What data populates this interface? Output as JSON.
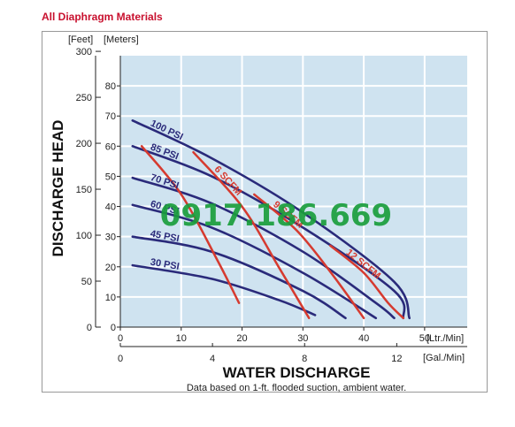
{
  "page": {
    "title": "All Diaphragm Materials",
    "watermark": "0917.186.669"
  },
  "chart_data": {
    "type": "line",
    "title": "All Diaphragm Materials",
    "xlabel": "WATER DISCHARGE",
    "ylabel": "DISCHARGE HEAD",
    "note": "Data based on 1-ft. flooded suction, ambient water.",
    "x_unit_primary": "[Ltr./Min]",
    "x_unit_secondary": "[Gal./Min]",
    "y_unit_left": "[Feet]",
    "y_unit_right": "[Meters]",
    "xlim": [
      0,
      57
    ],
    "ylim_meters": [
      0,
      90
    ],
    "ylim_feet": [
      0,
      300
    ],
    "x_ticks_lpm": [
      "0",
      "10",
      "20",
      "30",
      "40",
      "50"
    ],
    "x_ticks_gpm": [
      "0",
      "4",
      "8",
      "12"
    ],
    "y_ticks_m": [
      "0",
      "10",
      "20",
      "30",
      "40",
      "50",
      "60",
      "70",
      "80"
    ],
    "y_ticks_ft": [
      "0",
      "50",
      "100",
      "150",
      "200",
      "250",
      "300"
    ],
    "grid": true,
    "series": [
      {
        "name": "100 PSI",
        "group": "pressure",
        "color": "#2a2a7a",
        "points": [
          [
            2,
            68.5
          ],
          [
            15,
            56
          ],
          [
            30,
            38
          ],
          [
            45,
            15
          ],
          [
            47.5,
            3
          ]
        ]
      },
      {
        "name": "85 PSI",
        "group": "pressure",
        "color": "#2a2a7a",
        "points": [
          [
            2,
            60
          ],
          [
            15,
            50
          ],
          [
            30,
            33
          ],
          [
            45,
            12
          ],
          [
            46.5,
            3
          ]
        ]
      },
      {
        "name": "70 PSI",
        "group": "pressure",
        "color": "#2a2a7a",
        "points": [
          [
            2,
            49.5
          ],
          [
            15,
            41
          ],
          [
            30,
            25
          ],
          [
            42,
            8
          ],
          [
            45,
            3
          ]
        ]
      },
      {
        "name": "60 PSI",
        "group": "pressure",
        "color": "#2a2a7a",
        "points": [
          [
            2,
            40.5
          ],
          [
            15,
            33
          ],
          [
            30,
            18
          ],
          [
            42,
            3
          ]
        ]
      },
      {
        "name": "45 PSI",
        "group": "pressure",
        "color": "#2a2a7a",
        "points": [
          [
            2,
            30
          ],
          [
            15,
            25
          ],
          [
            30,
            12
          ],
          [
            37,
            3
          ]
        ]
      },
      {
        "name": "30 PSI",
        "group": "pressure",
        "color": "#2a2a7a",
        "points": [
          [
            2,
            20.5
          ],
          [
            15,
            16
          ],
          [
            26,
            9
          ],
          [
            32,
            4
          ]
        ]
      },
      {
        "name": "",
        "group": "air",
        "color": "#d63a2f",
        "points": [
          [
            3.5,
            60
          ],
          [
            10,
            44
          ],
          [
            16,
            22
          ],
          [
            19.5,
            8
          ]
        ]
      },
      {
        "name": "6 SCFM",
        "group": "air",
        "color": "#d63a2f",
        "points": [
          [
            12,
            58
          ],
          [
            20,
            40
          ],
          [
            26,
            20
          ],
          [
            31,
            3
          ]
        ]
      },
      {
        "name": "9 SCFM",
        "group": "air",
        "color": "#d63a2f",
        "points": [
          [
            22,
            44
          ],
          [
            29,
            32
          ],
          [
            35,
            17
          ],
          [
            40,
            3
          ]
        ]
      },
      {
        "name": "12 SCFM",
        "group": "air",
        "color": "#d63a2f",
        "points": [
          [
            34.5,
            27
          ],
          [
            40,
            18
          ],
          [
            44,
            8
          ],
          [
            46.5,
            3
          ]
        ]
      }
    ]
  }
}
